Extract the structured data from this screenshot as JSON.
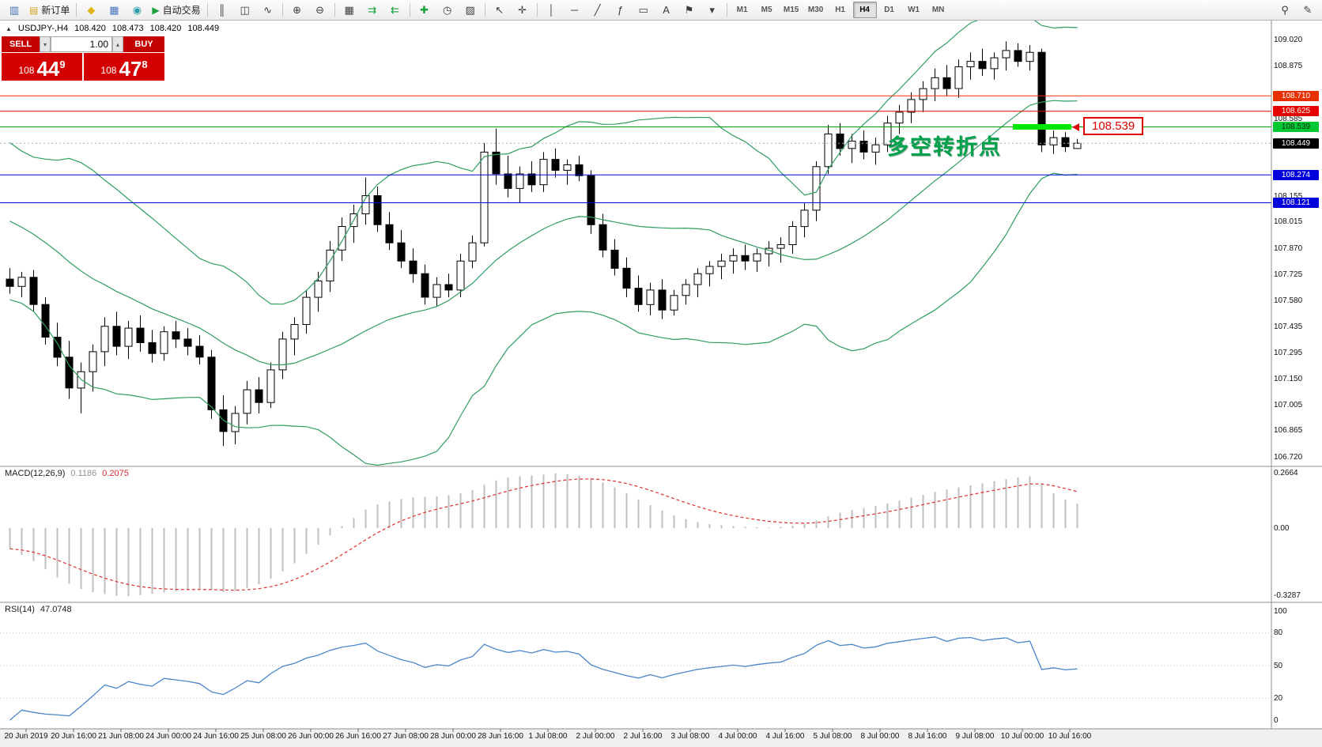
{
  "toolbar": {
    "groups": [
      {
        "items": [
          {
            "name": "chart-window-button",
            "icon": "▥",
            "icon_color": "#3f6fb5"
          },
          {
            "name": "new-order-button",
            "icon": "▤",
            "icon_color": "#d1a51f",
            "label": "新订单"
          }
        ]
      },
      {
        "items": [
          {
            "name": "metaeditor-button",
            "icon": "◆",
            "icon_color": "#e0b317"
          },
          {
            "name": "market-watch-button",
            "icon": "▦",
            "icon_color": "#4a76c0"
          },
          {
            "name": "data-window-button",
            "icon": "◉",
            "icon_color": "#2e9aa8"
          },
          {
            "name": "autotrading-button",
            "icon": "▶",
            "icon_color": "#1ba23a",
            "label": "自动交易"
          }
        ]
      },
      {
        "items": [
          {
            "name": "bar-chart-button",
            "icon": "║"
          },
          {
            "name": "candlestick-chart-button",
            "icon": "◫"
          },
          {
            "name": "line-chart-button",
            "icon": "∿"
          }
        ]
      },
      {
        "items": [
          {
            "name": "zoom-in-button",
            "icon": "⊕"
          },
          {
            "name": "zoom-out-button",
            "icon": "⊖"
          }
        ]
      },
      {
        "items": [
          {
            "name": "tile-windows-button",
            "icon": "▦"
          },
          {
            "name": "auto-scroll-button",
            "icon": "⇉",
            "icon_color": "#1ba23a"
          },
          {
            "name": "chart-shift-button",
            "icon": "⇇",
            "icon_color": "#1ba23a"
          }
        ]
      },
      {
        "items": [
          {
            "name": "indicators-button",
            "icon": "✚",
            "icon_color": "#1ba23a"
          },
          {
            "name": "periods-button",
            "icon": "◷"
          },
          {
            "name": "templates-button",
            "icon": "▨"
          }
        ]
      },
      {
        "items": [
          {
            "name": "cursor-button",
            "icon": "↖"
          },
          {
            "name": "crosshair-button",
            "icon": "✛"
          }
        ]
      },
      {
        "items": [
          {
            "name": "vertical-line-button",
            "icon": "│"
          },
          {
            "name": "horizontal-line-button",
            "icon": "─"
          },
          {
            "name": "trendline-button",
            "icon": "╱"
          },
          {
            "name": "fibonacci-button",
            "icon": "ƒ"
          },
          {
            "name": "shapes-button",
            "icon": "▭"
          },
          {
            "name": "text-button",
            "icon": "A"
          },
          {
            "name": "arrows-button",
            "icon": "⚑"
          },
          {
            "name": "objects-dropdown",
            "icon": "▾"
          }
        ]
      }
    ],
    "timeframes": [
      {
        "label": "M1"
      },
      {
        "label": "M5"
      },
      {
        "label": "M15"
      },
      {
        "label": "M30"
      },
      {
        "label": "H1"
      },
      {
        "label": "H4",
        "active": true
      },
      {
        "label": "D1"
      },
      {
        "label": "W1"
      },
      {
        "label": "MN"
      }
    ],
    "right_items": [
      {
        "name": "search-button",
        "icon": "⚲"
      },
      {
        "name": "quick-edit-button",
        "icon": "✎"
      }
    ]
  },
  "symbol_info": {
    "collapse_icon": "▲",
    "title": "USDJPY-,H4",
    "open": "108.420",
    "high": "108.473",
    "low": "108.420",
    "close": "108.449"
  },
  "one_click": {
    "sell_label": "SELL",
    "buy_label": "BUY",
    "volume": "1.00",
    "down_icon": "▾",
    "up_icon": "▴",
    "sell_price": {
      "base": "108",
      "big": "44",
      "sup": "9"
    },
    "buy_price": {
      "base": "108",
      "big": "47",
      "sup": "8"
    }
  },
  "annotation": {
    "text": "多空转折点",
    "color": "#00a14b"
  },
  "callout": {
    "text": "108.539"
  },
  "levels": [
    {
      "price": 108.71,
      "label": "108.710",
      "color": "#f03000",
      "badge_bg": "#e63000",
      "badge_fg": "#ffffff"
    },
    {
      "price": 108.625,
      "label": "108.625",
      "color": "#e60000",
      "badge_bg": "#e60000",
      "badge_fg": "#ffffff"
    },
    {
      "price": 108.539,
      "label": "108.539",
      "color": "#00a000",
      "badge_bg": "#00c832",
      "badge_fg": "#0b2e12",
      "thick_segment": [
        1281,
        1355
      ],
      "thick_color": "#00e800"
    },
    {
      "price": 108.274,
      "label": "108.274",
      "color": "#0000dc",
      "badge_bg": "#0000dc",
      "badge_fg": "#ffffff"
    },
    {
      "price": 108.121,
      "label": "108.121",
      "color": "#0000dc",
      "badge_bg": "#0000dc",
      "badge_fg": "#ffffff"
    }
  ],
  "current_price": {
    "value": 108.449,
    "label": "108.449",
    "badge_bg": "#000000",
    "badge_fg": "#ffffff"
  },
  "indicator_labels": {
    "macd_name": "MACD(12,26,9)",
    "macd_value": "0.1186",
    "macd_signal": "0.2075",
    "rsi_name": "RSI(14)",
    "rsi_value": "47.0748"
  },
  "axis": {
    "price_ticks": [
      "109.020",
      "108.875",
      "108.585",
      "108.155",
      "108.015",
      "107.870",
      "107.725",
      "107.580",
      "107.435",
      "107.295",
      "107.150",
      "107.005",
      "106.865",
      "106.720"
    ],
    "macd_ticks": [
      "0.2664",
      "0.00",
      "-0.3287"
    ],
    "rsi_ticks": [
      "100",
      "80",
      "50",
      "20",
      "0"
    ]
  },
  "time_axis": {
    "labels": [
      "20 Jun 2019",
      "20 Jun 16:00",
      "21 Jun 08:00",
      "24 Jun 00:00",
      "24 Jun 16:00",
      "25 Jun 08:00",
      "26 Jun 00:00",
      "26 Jun 16:00",
      "27 Jun 08:00",
      "28 Jun 00:00",
      "28 Jun 16:00",
      "1 Jul 08:00",
      "2 Jul 00:00",
      "2 Jul 16:00",
      "3 Jul 08:00",
      "4 Jul 00:00",
      "4 Jul 16:00",
      "5 Jul 08:00",
      "8 Jul 00:00",
      "8 Jul 16:00",
      "9 Jul 08:00",
      "10 Jul 00:00",
      "10 Jul 16:00"
    ]
  },
  "chart_data": {
    "type": "candlestick",
    "symbol": "USDJPY-",
    "timeframe": "H4",
    "title": "USDJPY-,H4 108.420 108.473 108.420 108.449",
    "ylim_main": [
      106.668,
      109.125
    ],
    "ylim_macd": [
      -0.36,
      0.3
    ],
    "ylim_rsi": [
      -8,
      108
    ],
    "indicators": {
      "bollinger_period": 20,
      "bollinger_deviation": 2,
      "macd_params": "12,26,9",
      "rsi_period": 14
    },
    "colors": {
      "bollinger": "#2f9e5f",
      "macd_histogram": "#bfbfbf",
      "macd_signal": "#e03030",
      "rsi": "#4a86c8",
      "bull": "#ffffff",
      "bear": "#000000",
      "wick": "#000000"
    },
    "seed_closes": [
      108.42,
      108.38,
      108.34,
      108.3,
      108.27,
      108.23,
      108.19,
      108.15,
      108.11,
      108.07,
      108.03,
      107.99,
      107.96,
      107.92,
      107.89,
      107.85,
      107.82,
      107.78,
      107.74,
      107.71
    ],
    "candles": [
      [
        107.7,
        107.76,
        107.62,
        107.66
      ],
      [
        107.66,
        107.74,
        107.6,
        107.71
      ],
      [
        107.71,
        107.75,
        107.52,
        107.56
      ],
      [
        107.56,
        107.6,
        107.34,
        107.38
      ],
      [
        107.38,
        107.46,
        107.22,
        107.27
      ],
      [
        107.27,
        107.36,
        107.04,
        107.1
      ],
      [
        107.1,
        107.24,
        106.96,
        107.19
      ],
      [
        107.19,
        107.34,
        107.08,
        107.3
      ],
      [
        107.3,
        107.49,
        107.22,
        107.44
      ],
      [
        107.44,
        107.52,
        107.28,
        107.33
      ],
      [
        107.33,
        107.47,
        107.26,
        107.43
      ],
      [
        107.43,
        107.5,
        107.3,
        107.35
      ],
      [
        107.35,
        107.42,
        107.24,
        107.29
      ],
      [
        107.29,
        107.44,
        107.25,
        107.41
      ],
      [
        107.41,
        107.47,
        107.32,
        107.37
      ],
      [
        107.37,
        107.43,
        107.28,
        107.33
      ],
      [
        107.33,
        107.39,
        107.23,
        107.27
      ],
      [
        107.27,
        107.31,
        106.93,
        106.98
      ],
      [
        106.98,
        107.06,
        106.78,
        106.86
      ],
      [
        106.86,
        107.0,
        106.79,
        106.96
      ],
      [
        106.96,
        107.14,
        106.9,
        107.09
      ],
      [
        107.09,
        107.16,
        106.96,
        107.02
      ],
      [
        107.02,
        107.24,
        106.99,
        107.2
      ],
      [
        107.2,
        107.41,
        107.15,
        107.37
      ],
      [
        107.37,
        107.49,
        107.28,
        107.45
      ],
      [
        107.45,
        107.64,
        107.4,
        107.6
      ],
      [
        107.6,
        107.74,
        107.52,
        107.69
      ],
      [
        107.69,
        107.91,
        107.63,
        107.86
      ],
      [
        107.86,
        108.04,
        107.8,
        107.99
      ],
      [
        107.99,
        108.11,
        107.9,
        108.06
      ],
      [
        108.06,
        108.26,
        108.0,
        108.16
      ],
      [
        108.16,
        108.21,
        107.96,
        108.0
      ],
      [
        108.0,
        108.07,
        107.86,
        107.9
      ],
      [
        107.9,
        107.97,
        107.76,
        107.8
      ],
      [
        107.8,
        107.87,
        107.68,
        107.73
      ],
      [
        107.73,
        107.78,
        107.56,
        107.6
      ],
      [
        107.6,
        107.71,
        107.55,
        107.67
      ],
      [
        107.67,
        107.73,
        107.6,
        107.64
      ],
      [
        107.64,
        107.84,
        107.6,
        107.8
      ],
      [
        107.8,
        107.94,
        107.76,
        107.9
      ],
      [
        107.9,
        108.45,
        107.88,
        108.4
      ],
      [
        108.4,
        108.53,
        108.22,
        108.28
      ],
      [
        108.28,
        108.38,
        108.15,
        108.2
      ],
      [
        108.2,
        108.32,
        108.12,
        108.28
      ],
      [
        108.28,
        108.35,
        108.18,
        108.22
      ],
      [
        108.22,
        108.4,
        108.18,
        108.36
      ],
      [
        108.36,
        108.42,
        108.26,
        108.3
      ],
      [
        108.3,
        108.36,
        108.22,
        108.33
      ],
      [
        108.33,
        108.38,
        108.24,
        108.27
      ],
      [
        108.27,
        108.3,
        107.95,
        108.0
      ],
      [
        108.0,
        108.06,
        107.82,
        107.86
      ],
      [
        107.86,
        107.92,
        107.72,
        107.76
      ],
      [
        107.76,
        107.82,
        107.6,
        107.65
      ],
      [
        107.65,
        107.72,
        107.52,
        107.56
      ],
      [
        107.56,
        107.68,
        107.5,
        107.64
      ],
      [
        107.64,
        107.7,
        107.48,
        107.53
      ],
      [
        107.53,
        107.64,
        107.5,
        107.61
      ],
      [
        107.61,
        107.7,
        107.56,
        107.67
      ],
      [
        107.67,
        107.76,
        107.6,
        107.73
      ],
      [
        107.73,
        107.8,
        107.66,
        107.77
      ],
      [
        107.77,
        107.84,
        107.7,
        107.8
      ],
      [
        107.8,
        107.87,
        107.73,
        107.83
      ],
      [
        107.83,
        107.89,
        107.75,
        107.8
      ],
      [
        107.8,
        107.87,
        107.74,
        107.84
      ],
      [
        107.84,
        107.91,
        107.77,
        107.87
      ],
      [
        107.87,
        107.93,
        107.79,
        107.89
      ],
      [
        107.89,
        108.02,
        107.84,
        107.99
      ],
      [
        107.99,
        108.12,
        107.93,
        108.08
      ],
      [
        108.08,
        108.35,
        108.02,
        108.32
      ],
      [
        108.32,
        108.55,
        108.28,
        108.5
      ],
      [
        108.5,
        108.56,
        108.38,
        108.42
      ],
      [
        108.42,
        108.5,
        108.34,
        108.46
      ],
      [
        108.46,
        108.52,
        108.36,
        108.4
      ],
      [
        108.4,
        108.48,
        108.33,
        108.44
      ],
      [
        108.44,
        108.6,
        108.4,
        108.56
      ],
      [
        108.56,
        108.66,
        108.5,
        108.62
      ],
      [
        108.62,
        108.73,
        108.56,
        108.69
      ],
      [
        108.69,
        108.79,
        108.62,
        108.75
      ],
      [
        108.75,
        108.86,
        108.68,
        108.81
      ],
      [
        108.81,
        108.88,
        108.71,
        108.75
      ],
      [
        108.75,
        108.91,
        108.7,
        108.87
      ],
      [
        108.87,
        108.95,
        108.8,
        108.9
      ],
      [
        108.9,
        108.97,
        108.82,
        108.86
      ],
      [
        108.86,
        108.95,
        108.8,
        108.92
      ],
      [
        108.92,
        109.01,
        108.85,
        108.96
      ],
      [
        108.96,
        109.0,
        108.87,
        108.9
      ],
      [
        108.9,
        108.99,
        108.85,
        108.95
      ],
      [
        108.95,
        108.97,
        108.4,
        108.44
      ],
      [
        108.44,
        108.52,
        108.39,
        108.48
      ],
      [
        108.48,
        108.51,
        108.4,
        108.43
      ],
      [
        108.42,
        108.473,
        108.42,
        108.449
      ]
    ],
    "macd": [
      -0.1,
      -0.13,
      -0.16,
      -0.2,
      -0.24,
      -0.27,
      -0.295,
      -0.31,
      -0.32,
      -0.328,
      -0.329,
      -0.325,
      -0.318,
      -0.312,
      -0.306,
      -0.3,
      -0.296,
      -0.3,
      -0.31,
      -0.305,
      -0.29,
      -0.272,
      -0.245,
      -0.21,
      -0.17,
      -0.125,
      -0.08,
      -0.035,
      0.01,
      0.05,
      0.09,
      0.115,
      0.13,
      0.142,
      0.15,
      0.152,
      0.155,
      0.16,
      0.17,
      0.185,
      0.21,
      0.232,
      0.245,
      0.252,
      0.256,
      0.26,
      0.2664,
      0.262,
      0.255,
      0.242,
      0.222,
      0.198,
      0.17,
      0.14,
      0.112,
      0.085,
      0.062,
      0.044,
      0.03,
      0.02,
      0.014,
      0.01,
      0.007,
      0.005,
      0.004,
      0.006,
      0.012,
      0.022,
      0.038,
      0.058,
      0.075,
      0.088,
      0.098,
      0.108,
      0.12,
      0.134,
      0.148,
      0.162,
      0.176,
      0.188,
      0.198,
      0.208,
      0.218,
      0.228,
      0.238,
      0.246,
      0.252,
      0.215,
      0.17,
      0.138,
      0.1186
    ]
  }
}
